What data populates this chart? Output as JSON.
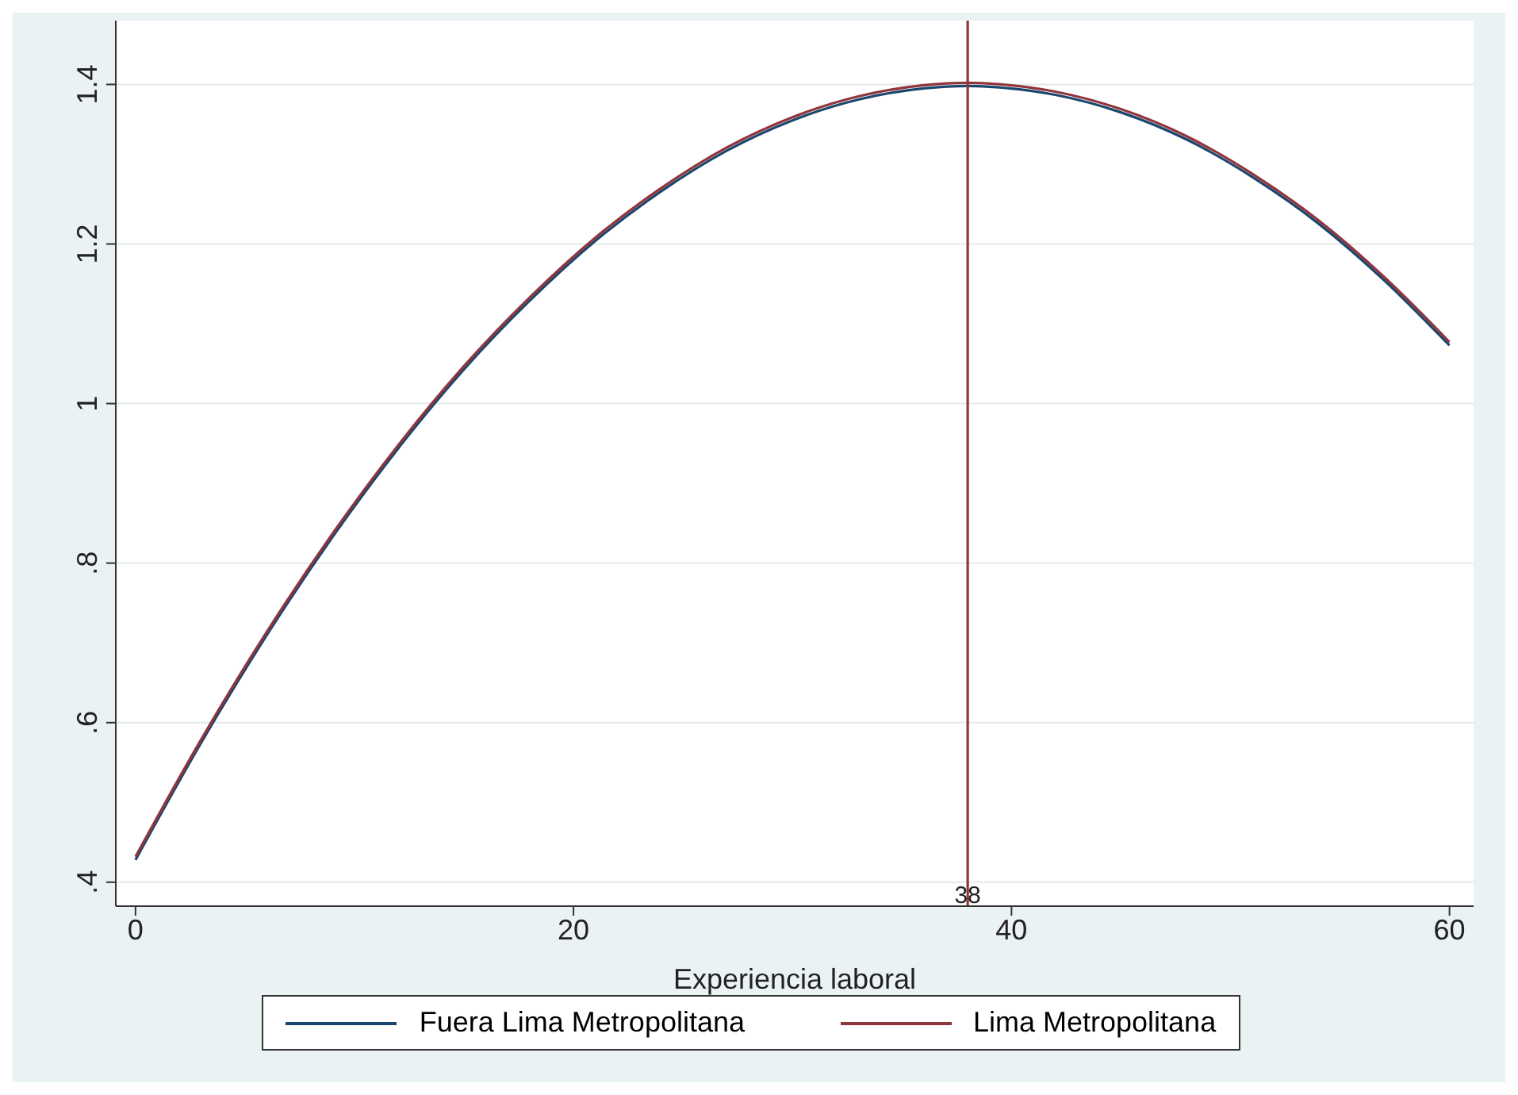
{
  "chart_data": {
    "type": "line",
    "xlabel": "Experiencia laboral",
    "x": [
      0,
      3,
      6,
      9,
      12,
      15,
      18,
      21,
      24,
      27,
      30,
      33,
      36,
      38,
      39,
      42,
      45,
      48,
      51,
      54,
      57,
      60
    ],
    "series": [
      {
        "name": "Fuera Lima Metropolitana",
        "color": "#1a476f",
        "values": [
          0.428,
          0.575,
          0.71,
          0.833,
          0.944,
          1.043,
          1.129,
          1.204,
          1.266,
          1.317,
          1.355,
          1.381,
          1.395,
          1.398,
          1.397,
          1.387,
          1.365,
          1.331,
          1.284,
          1.226,
          1.155,
          1.073
        ]
      },
      {
        "name": "Lima Metropolitana",
        "color": "#90353b",
        "values": [
          0.432,
          0.579,
          0.714,
          0.837,
          0.948,
          1.047,
          1.133,
          1.208,
          1.27,
          1.321,
          1.359,
          1.385,
          1.399,
          1.402,
          1.401,
          1.391,
          1.369,
          1.335,
          1.288,
          1.23,
          1.159,
          1.077
        ]
      }
    ],
    "xlim": [
      -0.9,
      61.1
    ],
    "xticks": [
      0,
      20,
      40,
      60
    ],
    "ylim": [
      0.37,
      1.48
    ],
    "yticks": [
      {
        "value": 0.4,
        "label": ".4"
      },
      {
        "value": 0.6,
        "label": ".6"
      },
      {
        "value": 0.8,
        "label": ".8"
      },
      {
        "value": 1,
        "label": "1"
      },
      {
        "value": 1.2,
        "label": "1.2"
      },
      {
        "value": 1.4,
        "label": "1.4"
      }
    ],
    "ref_lines": [
      {
        "axis": "x",
        "value": 38,
        "label": "38",
        "color": "#90353b"
      }
    ],
    "grid": "y",
    "legend": "bottom",
    "marker": "none",
    "line_style": "solid"
  }
}
